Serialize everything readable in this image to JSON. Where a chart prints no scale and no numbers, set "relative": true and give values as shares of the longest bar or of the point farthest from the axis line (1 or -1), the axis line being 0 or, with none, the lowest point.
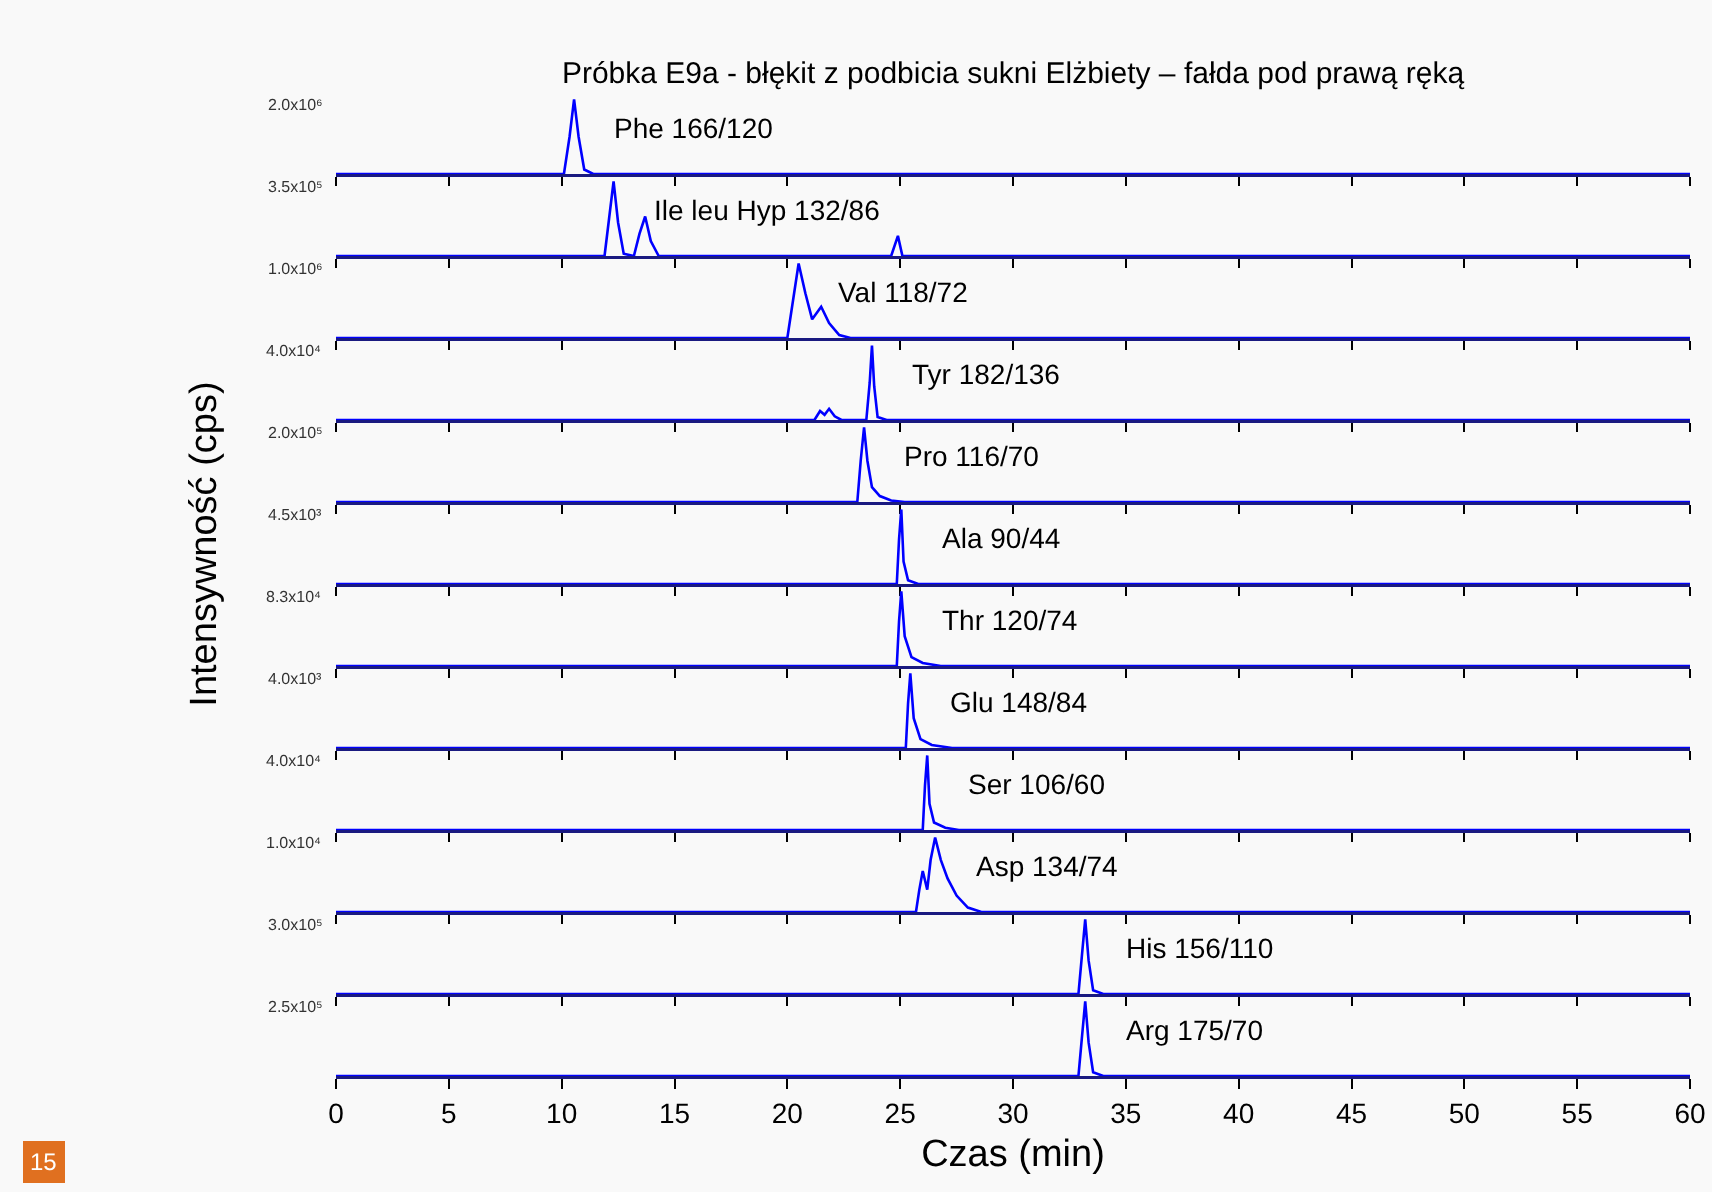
{
  "chart_data": [
    {
      "type": "line",
      "relative": true,
      "title": "Próbka E9a - błękit z podbicia sukni Elżbiety – fałda pod prawą ręką",
      "xlim": [
        0,
        60
      ],
      "xticks": [
        0,
        5,
        10,
        15,
        20,
        25,
        30,
        35,
        40,
        45,
        50,
        55,
        60
      ],
      "tick_labels": false,
      "annotations": [
        "2.0x10⁶"
      ],
      "series": [
        {
          "name": "Phe 166/120",
          "color": "#0000ff",
          "x": [
            0,
            10.1,
            10.35,
            10.55,
            10.75,
            11.0,
            11.4,
            60
          ],
          "values": [
            0,
            0,
            0.5,
            1,
            0.5,
            0.06,
            0,
            0
          ]
        }
      ]
    },
    {
      "type": "line",
      "relative": true,
      "xlim": [
        0,
        60
      ],
      "xticks": [
        0,
        5,
        10,
        15,
        20,
        25,
        30,
        35,
        40,
        45,
        50,
        55,
        60
      ],
      "tick_labels": false,
      "annotations": [
        "3.5x10⁵"
      ],
      "series": [
        {
          "name": "Ile leu Hyp 132/86",
          "color": "#0000ff",
          "x": [
            0,
            11.9,
            12.1,
            12.3,
            12.5,
            12.75,
            13.2,
            13.45,
            13.7,
            13.95,
            14.3,
            24.6,
            24.9,
            25.1,
            60
          ],
          "values": [
            0,
            0,
            0.5,
            1,
            0.45,
            0.03,
            0,
            0.3,
            0.53,
            0.2,
            0,
            0,
            0.27,
            0,
            0
          ]
        }
      ]
    },
    {
      "type": "line",
      "relative": true,
      "xlim": [
        0,
        60
      ],
      "xticks": [
        0,
        5,
        10,
        15,
        20,
        25,
        30,
        35,
        40,
        45,
        50,
        55,
        60
      ],
      "tick_labels": false,
      "annotations": [
        "1.0x10⁶"
      ],
      "series": [
        {
          "name": "Val 118/72",
          "color": "#0000ff",
          "x": [
            0,
            20.0,
            20.25,
            20.5,
            20.8,
            21.1,
            21.5,
            21.85,
            22.3,
            22.8,
            60
          ],
          "values": [
            0,
            0,
            0.5,
            1,
            0.6,
            0.25,
            0.42,
            0.2,
            0.04,
            0,
            0
          ]
        }
      ]
    },
    {
      "type": "line",
      "relative": true,
      "xlim": [
        0,
        60
      ],
      "xticks": [
        0,
        5,
        10,
        15,
        20,
        25,
        30,
        35,
        40,
        45,
        50,
        55,
        60
      ],
      "tick_labels": false,
      "annotations": [
        "4.0x10⁴"
      ],
      "series": [
        {
          "name": "Tyr 182/136",
          "color": "#0000ff",
          "x": [
            0,
            21.2,
            21.45,
            21.65,
            21.85,
            22.1,
            22.4,
            23.5,
            23.65,
            23.75,
            23.85,
            24.0,
            24.4,
            60
          ],
          "values": [
            0,
            0,
            0.12,
            0.07,
            0.15,
            0.05,
            0,
            0,
            0.5,
            1,
            0.45,
            0.04,
            0,
            0
          ]
        }
      ]
    },
    {
      "type": "line",
      "relative": true,
      "xlim": [
        0,
        60
      ],
      "xticks": [
        0,
        5,
        10,
        15,
        20,
        25,
        30,
        35,
        40,
        45,
        50,
        55,
        60
      ],
      "tick_labels": false,
      "annotations": [
        "2.0x10⁵"
      ],
      "series": [
        {
          "name": "Pro 116/70",
          "color": "#0000ff",
          "x": [
            0,
            23.1,
            23.25,
            23.4,
            23.55,
            23.75,
            24.1,
            24.6,
            25.2,
            60
          ],
          "values": [
            0,
            0,
            0.55,
            1,
            0.55,
            0.2,
            0.08,
            0.02,
            0,
            0
          ]
        }
      ]
    },
    {
      "type": "line",
      "relative": true,
      "xlim": [
        0,
        60
      ],
      "xticks": [
        0,
        5,
        10,
        15,
        20,
        25,
        30,
        35,
        40,
        45,
        50,
        55,
        60
      ],
      "tick_labels": false,
      "ylabel": "Intensywność (cps)",
      "annotations": [
        "4.5x10³"
      ],
      "series": [
        {
          "name": "Ala 90/44",
          "color": "#0000ff",
          "x": [
            0,
            24.85,
            24.95,
            25.05,
            25.15,
            25.35,
            25.8,
            60
          ],
          "values": [
            0,
            0,
            0.6,
            1,
            0.3,
            0.05,
            0,
            0
          ]
        }
      ]
    },
    {
      "type": "line",
      "relative": true,
      "xlim": [
        0,
        60
      ],
      "xticks": [
        0,
        5,
        10,
        15,
        20,
        25,
        30,
        35,
        40,
        45,
        50,
        55,
        60
      ],
      "tick_labels": false,
      "annotations": [
        "8.3x10⁴"
      ],
      "series": [
        {
          "name": "Thr 120/74",
          "color": "#0000ff",
          "x": [
            0,
            24.85,
            24.95,
            25.05,
            25.2,
            25.5,
            26.0,
            26.8,
            60
          ],
          "values": [
            0,
            0,
            0.6,
            1,
            0.4,
            0.12,
            0.04,
            0,
            0
          ]
        }
      ]
    },
    {
      "type": "line",
      "relative": true,
      "xlim": [
        0,
        60
      ],
      "xticks": [
        0,
        5,
        10,
        15,
        20,
        25,
        30,
        35,
        40,
        45,
        50,
        55,
        60
      ],
      "tick_labels": false,
      "annotations": [
        "4.0x10³"
      ],
      "series": [
        {
          "name": "Glu 148/84",
          "color": "#0000ff",
          "x": [
            0,
            25.25,
            25.35,
            25.45,
            25.6,
            25.9,
            26.4,
            27.3,
            60
          ],
          "values": [
            0,
            0,
            0.6,
            1,
            0.4,
            0.12,
            0.04,
            0,
            0
          ]
        }
      ]
    },
    {
      "type": "line",
      "relative": true,
      "xlim": [
        0,
        60
      ],
      "xticks": [
        0,
        5,
        10,
        15,
        20,
        25,
        30,
        35,
        40,
        45,
        50,
        55,
        60
      ],
      "tick_labels": false,
      "annotations": [
        "4.0x10⁴"
      ],
      "series": [
        {
          "name": "Ser 106/60",
          "color": "#0000ff",
          "x": [
            0,
            26.0,
            26.1,
            26.2,
            26.3,
            26.5,
            27.0,
            27.6,
            60
          ],
          "values": [
            0,
            0,
            0.6,
            1,
            0.35,
            0.1,
            0.03,
            0,
            0
          ]
        }
      ]
    },
    {
      "type": "line",
      "relative": true,
      "xlim": [
        0,
        60
      ],
      "xticks": [
        0,
        5,
        10,
        15,
        20,
        25,
        30,
        35,
        40,
        45,
        50,
        55,
        60
      ],
      "tick_labels": false,
      "annotations": [
        "1.0x10⁴"
      ],
      "series": [
        {
          "name": "Asp 134/74",
          "color": "#0000ff",
          "x": [
            0,
            25.7,
            25.85,
            26.0,
            26.2,
            26.35,
            26.55,
            26.8,
            27.1,
            27.5,
            28.0,
            28.6,
            60
          ],
          "values": [
            0,
            0,
            0.3,
            0.55,
            0.3,
            0.7,
            1,
            0.7,
            0.45,
            0.22,
            0.06,
            0,
            0
          ]
        }
      ]
    },
    {
      "type": "line",
      "relative": true,
      "xlim": [
        0,
        60
      ],
      "xticks": [
        0,
        5,
        10,
        15,
        20,
        25,
        30,
        35,
        40,
        45,
        50,
        55,
        60
      ],
      "tick_labels": false,
      "annotations": [
        "3.0x10⁵"
      ],
      "series": [
        {
          "name": "His 156/110",
          "color": "#0000ff",
          "x": [
            0,
            32.9,
            33.05,
            33.2,
            33.35,
            33.55,
            34.0,
            60
          ],
          "values": [
            0,
            0,
            0.5,
            1,
            0.45,
            0.05,
            0,
            0
          ]
        }
      ]
    },
    {
      "type": "line",
      "relative": true,
      "xlabel": "Czas (min)",
      "xlim": [
        0,
        60
      ],
      "xticks": [
        0,
        5,
        10,
        15,
        20,
        25,
        30,
        35,
        40,
        45,
        50,
        55,
        60
      ],
      "tick_labels": "x",
      "annotations": [
        "2.5x10⁵",
        "15"
      ],
      "series": [
        {
          "name": "Arg 175/70",
          "color": "#0000ff",
          "x": [
            0,
            32.9,
            33.05,
            33.2,
            33.35,
            33.55,
            34.0,
            60
          ],
          "values": [
            0,
            0,
            0.5,
            1,
            0.45,
            0.05,
            0,
            0
          ]
        }
      ]
    }
  ]
}
